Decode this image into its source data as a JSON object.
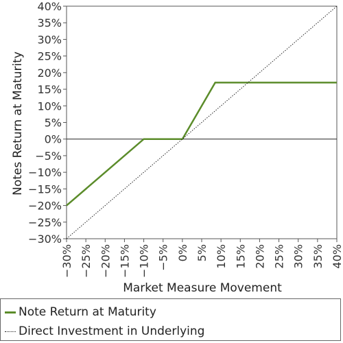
{
  "chart_data": {
    "type": "line",
    "xlabel": "Market Measure Movement",
    "ylabel": "Notes Return at Maturity",
    "xlim": [
      -30,
      40
    ],
    "ylim": [
      -30,
      40
    ],
    "x_ticks": [
      "−30%",
      "−25%",
      "−20%",
      "−15%",
      "−10%",
      "−5%",
      "0%",
      "5%",
      "10%",
      "15%",
      "20%",
      "25%",
      "30%",
      "35%",
      "40%"
    ],
    "y_ticks": [
      "−30%",
      "−25%",
      "−20%",
      "−15%",
      "−10%",
      "−5%",
      "0%",
      "5%",
      "10%",
      "15%",
      "20%",
      "25%",
      "30%",
      "35%",
      "40%"
    ],
    "x_tick_values": [
      -30,
      -25,
      -20,
      -15,
      -10,
      -5,
      0,
      5,
      10,
      15,
      20,
      25,
      30,
      35,
      40
    ],
    "y_tick_values": [
      -30,
      -25,
      -20,
      -15,
      -10,
      -5,
      0,
      5,
      10,
      15,
      20,
      25,
      30,
      35,
      40
    ],
    "series": [
      {
        "name": "Note Return at Maturity",
        "color": "#5b8c2a",
        "style": "solid",
        "x": [
          -30,
          -10,
          0,
          8.5,
          40
        ],
        "y": [
          -20,
          0,
          0,
          17,
          17
        ]
      },
      {
        "name": "Direct Investment in Underlying",
        "color": "#222222",
        "style": "dotted",
        "x": [
          -30,
          40
        ],
        "y": [
          -30,
          40
        ]
      }
    ],
    "legend_position": "bottom",
    "grid": false
  }
}
